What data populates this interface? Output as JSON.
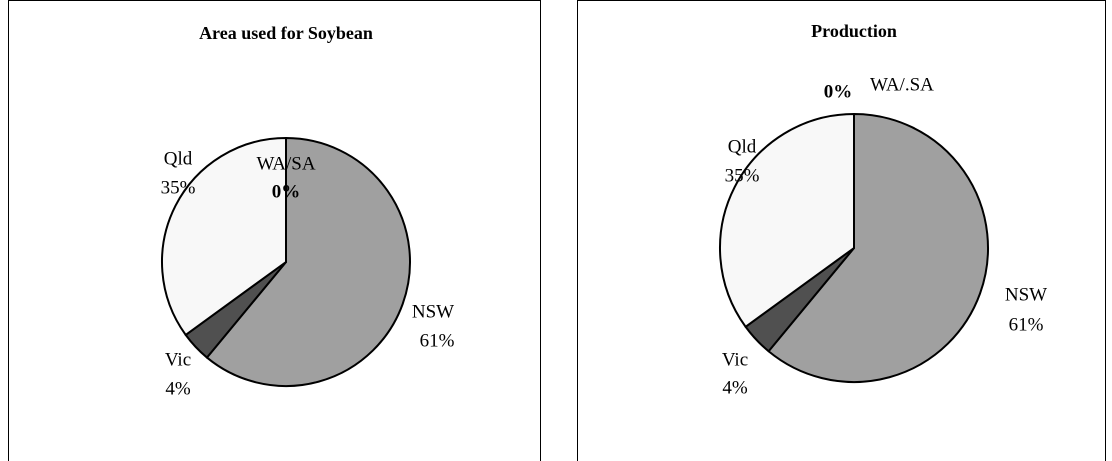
{
  "chart_data": [
    {
      "type": "pie",
      "title": "Area used for Soybean",
      "categories": [
        "NSW",
        "Vic",
        "Qld",
        "WA/SA"
      ],
      "values": [
        61,
        4,
        35,
        0
      ],
      "value_labels": [
        "61%",
        "4%",
        "35%",
        "0%"
      ],
      "colors": [
        "#a0a0a0",
        "#505050",
        "#f8f8f8",
        "#ffffff"
      ]
    },
    {
      "type": "pie",
      "title": "Production",
      "categories": [
        "NSW",
        "Vic",
        "Qld",
        "WA/.SA"
      ],
      "values": [
        61,
        4,
        35,
        0
      ],
      "value_labels": [
        "61%",
        "4%",
        "35%",
        "0%"
      ],
      "colors": [
        "#a0a0a0",
        "#505050",
        "#f8f8f8",
        "#ffffff"
      ]
    }
  ]
}
